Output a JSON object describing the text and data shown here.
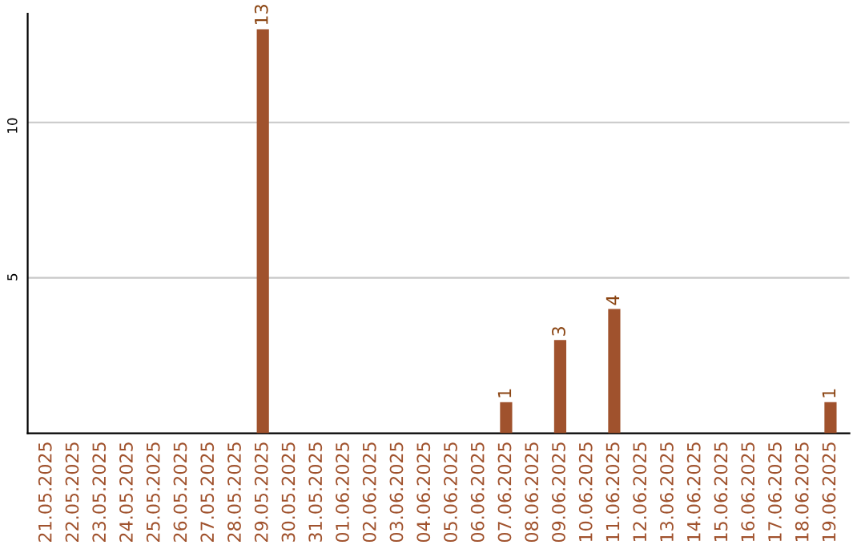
{
  "chart_data": {
    "type": "bar",
    "categories": [
      "21.05.2025",
      "22.05.2025",
      "23.05.2025",
      "24.05.2025",
      "25.05.2025",
      "26.05.2025",
      "27.05.2025",
      "28.05.2025",
      "29.05.2025",
      "30.05.2025",
      "31.05.2025",
      "01.06.2025",
      "02.06.2025",
      "03.06.2025",
      "04.06.2025",
      "05.06.2025",
      "06.06.2025",
      "07.06.2025",
      "08.06.2025",
      "09.06.2025",
      "10.06.2025",
      "11.06.2025",
      "12.06.2025",
      "13.06.2025",
      "14.06.2025",
      "15.06.2025",
      "16.06.2025",
      "17.06.2025",
      "18.06.2025",
      "19.06.2025"
    ],
    "values": [
      0,
      0,
      0,
      0,
      0,
      0,
      0,
      0,
      13,
      0,
      0,
      0,
      0,
      0,
      0,
      0,
      0,
      1,
      0,
      3,
      0,
      4,
      0,
      0,
      0,
      0,
      0,
      0,
      0,
      1
    ],
    "value_labels": [
      null,
      null,
      null,
      null,
      null,
      null,
      null,
      null,
      "13",
      null,
      null,
      null,
      null,
      null,
      null,
      null,
      null,
      "1",
      null,
      "3",
      null,
      "4",
      null,
      null,
      null,
      null,
      null,
      null,
      null,
      "1"
    ],
    "color": "#a0522d",
    "ylim": [
      0,
      13.5
    ],
    "yticks": [
      5,
      10
    ],
    "grid": "y"
  }
}
